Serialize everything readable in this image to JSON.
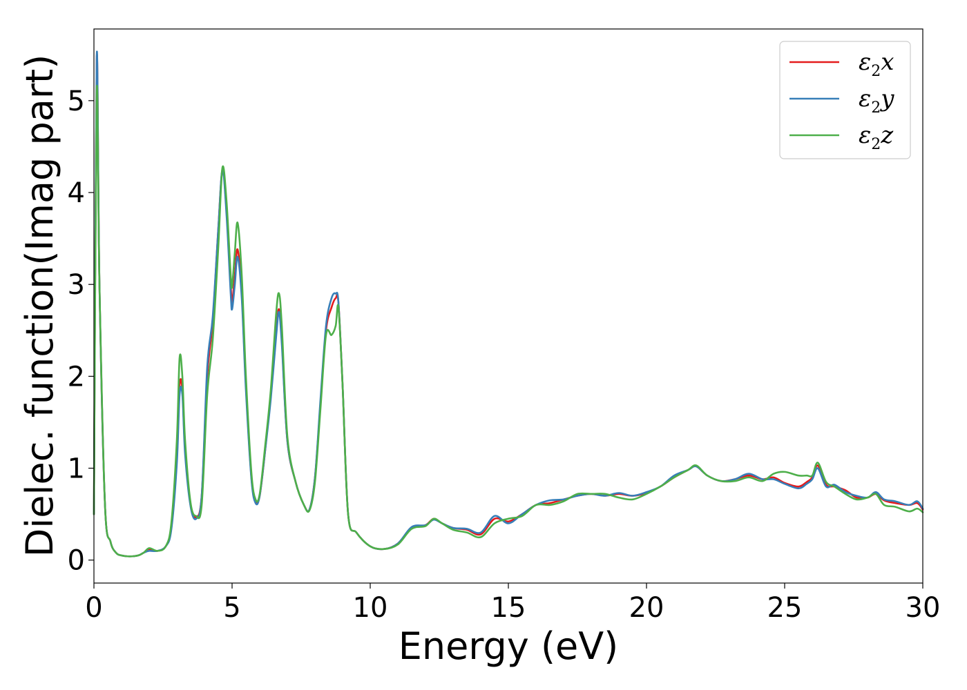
{
  "chart_data": {
    "type": "line",
    "title": "",
    "xlabel": "Energy (eV)",
    "ylabel": "Dielec. function(Imag part)",
    "xlim": [
      0,
      30
    ],
    "ylim": [
      -0.25,
      5.78
    ],
    "xticks": [
      "0",
      "5",
      "10",
      "15",
      "20",
      "25",
      "30"
    ],
    "yticks": [
      "0",
      "1",
      "2",
      "3",
      "4",
      "5"
    ],
    "grid": false,
    "legend_position": "top-right",
    "series": [
      {
        "name": "ε₂x",
        "legend_base": "ε",
        "legend_sub": "2",
        "legend_var": "x",
        "color": "#e41a1c",
        "x": [
          0.0,
          0.1,
          0.2,
          0.4,
          0.6,
          0.8,
          1.0,
          1.3,
          1.6,
          1.8,
          2.0,
          2.3,
          2.6,
          2.8,
          3.0,
          3.1,
          3.2,
          3.3,
          3.5,
          3.7,
          3.9,
          4.1,
          4.3,
          4.5,
          4.65,
          4.8,
          4.95,
          5.0,
          5.1,
          5.2,
          5.35,
          5.5,
          5.7,
          5.85,
          6.0,
          6.2,
          6.4,
          6.6,
          6.7,
          6.8,
          7.0,
          7.3,
          7.6,
          7.8,
          8.0,
          8.2,
          8.4,
          8.6,
          8.75,
          8.85,
          9.0,
          9.2,
          9.5,
          10.0,
          10.5,
          11.0,
          11.5,
          12.0,
          12.3,
          12.6,
          13.0,
          13.5,
          14.0,
          14.5,
          15.0,
          15.5,
          16.0,
          16.5,
          17.0,
          17.5,
          18.0,
          18.5,
          19.0,
          19.5,
          20.0,
          20.5,
          21.0,
          21.5,
          21.8,
          22.2,
          22.7,
          23.2,
          23.7,
          24.2,
          24.6,
          25.0,
          25.5,
          25.8,
          26.0,
          26.2,
          26.5,
          26.8,
          27.2,
          27.6,
          28.0,
          28.3,
          28.6,
          29.0,
          29.5,
          29.8,
          30.0
        ],
        "y": [
          0.5,
          5.45,
          3.0,
          0.6,
          0.2,
          0.08,
          0.05,
          0.04,
          0.05,
          0.08,
          0.12,
          0.1,
          0.15,
          0.35,
          1.1,
          1.9,
          1.85,
          1.2,
          0.6,
          0.47,
          0.7,
          2.0,
          2.6,
          3.6,
          4.25,
          3.8,
          3.0,
          2.8,
          3.1,
          3.38,
          2.9,
          1.9,
          0.9,
          0.64,
          0.7,
          1.2,
          1.8,
          2.5,
          2.73,
          2.4,
          1.3,
          0.85,
          0.6,
          0.55,
          0.9,
          1.7,
          2.5,
          2.75,
          2.85,
          2.8,
          1.9,
          0.5,
          0.3,
          0.15,
          0.12,
          0.18,
          0.35,
          0.38,
          0.45,
          0.4,
          0.35,
          0.33,
          0.28,
          0.45,
          0.42,
          0.5,
          0.6,
          0.62,
          0.66,
          0.7,
          0.72,
          0.7,
          0.72,
          0.7,
          0.73,
          0.8,
          0.9,
          0.98,
          1.02,
          0.92,
          0.86,
          0.88,
          0.92,
          0.88,
          0.9,
          0.84,
          0.8,
          0.85,
          0.9,
          1.03,
          0.82,
          0.8,
          0.76,
          0.68,
          0.68,
          0.72,
          0.65,
          0.62,
          0.6,
          0.62,
          0.55
        ]
      },
      {
        "name": "ε₂y",
        "legend_base": "ε",
        "legend_sub": "2",
        "legend_var": "y",
        "color": "#377eb8",
        "x": [
          0.0,
          0.1,
          0.2,
          0.4,
          0.6,
          0.8,
          1.0,
          1.3,
          1.6,
          1.8,
          2.0,
          2.3,
          2.6,
          2.8,
          3.0,
          3.1,
          3.2,
          3.3,
          3.5,
          3.7,
          3.9,
          4.1,
          4.3,
          4.5,
          4.65,
          4.8,
          4.95,
          5.0,
          5.1,
          5.2,
          5.35,
          5.5,
          5.7,
          5.85,
          6.0,
          6.2,
          6.4,
          6.6,
          6.7,
          6.8,
          7.0,
          7.3,
          7.6,
          7.8,
          8.0,
          8.2,
          8.4,
          8.6,
          8.75,
          8.85,
          9.0,
          9.2,
          9.5,
          10.0,
          10.5,
          11.0,
          11.5,
          12.0,
          12.3,
          12.6,
          13.0,
          13.5,
          14.0,
          14.5,
          15.0,
          15.5,
          16.0,
          16.5,
          17.0,
          17.5,
          18.0,
          18.5,
          19.0,
          19.5,
          20.0,
          20.5,
          21.0,
          21.5,
          21.8,
          22.2,
          22.7,
          23.2,
          23.7,
          24.2,
          24.6,
          25.0,
          25.5,
          25.8,
          26.0,
          26.2,
          26.5,
          26.8,
          27.2,
          27.6,
          28.0,
          28.3,
          28.6,
          29.0,
          29.5,
          29.8,
          30.0
        ],
        "y": [
          0.5,
          5.48,
          3.0,
          0.6,
          0.2,
          0.08,
          0.05,
          0.04,
          0.05,
          0.08,
          0.1,
          0.1,
          0.15,
          0.33,
          1.05,
          1.8,
          1.8,
          1.15,
          0.58,
          0.45,
          0.7,
          2.1,
          2.65,
          3.6,
          4.25,
          3.75,
          2.9,
          2.73,
          3.0,
          3.3,
          2.85,
          1.85,
          0.88,
          0.62,
          0.7,
          1.2,
          1.75,
          2.45,
          2.7,
          2.35,
          1.3,
          0.85,
          0.6,
          0.55,
          0.9,
          1.75,
          2.55,
          2.85,
          2.9,
          2.8,
          1.9,
          0.5,
          0.3,
          0.15,
          0.12,
          0.18,
          0.36,
          0.38,
          0.44,
          0.4,
          0.35,
          0.34,
          0.3,
          0.48,
          0.4,
          0.5,
          0.6,
          0.65,
          0.66,
          0.7,
          0.72,
          0.7,
          0.73,
          0.7,
          0.74,
          0.8,
          0.92,
          0.98,
          1.02,
          0.92,
          0.86,
          0.88,
          0.94,
          0.88,
          0.88,
          0.83,
          0.78,
          0.83,
          0.88,
          1.0,
          0.8,
          0.82,
          0.74,
          0.7,
          0.68,
          0.74,
          0.66,
          0.64,
          0.6,
          0.64,
          0.56
        ]
      },
      {
        "name": "ε₂z",
        "legend_base": "ε",
        "legend_sub": "2",
        "legend_var": "z",
        "color": "#4daf4a",
        "x": [
          0.0,
          0.1,
          0.2,
          0.4,
          0.6,
          0.8,
          1.0,
          1.3,
          1.6,
          1.8,
          2.0,
          2.3,
          2.6,
          2.8,
          3.0,
          3.1,
          3.2,
          3.3,
          3.5,
          3.7,
          3.9,
          4.1,
          4.3,
          4.5,
          4.65,
          4.8,
          4.95,
          5.0,
          5.1,
          5.2,
          5.35,
          5.5,
          5.7,
          5.85,
          6.0,
          6.2,
          6.4,
          6.6,
          6.7,
          6.8,
          7.0,
          7.3,
          7.6,
          7.8,
          8.0,
          8.2,
          8.4,
          8.6,
          8.75,
          8.85,
          9.0,
          9.2,
          9.5,
          10.0,
          10.5,
          11.0,
          11.5,
          12.0,
          12.3,
          12.6,
          13.0,
          13.5,
          14.0,
          14.5,
          15.0,
          15.5,
          16.0,
          16.5,
          17.0,
          17.5,
          18.0,
          18.5,
          19.0,
          19.5,
          20.0,
          20.5,
          21.0,
          21.5,
          21.8,
          22.2,
          22.7,
          23.2,
          23.7,
          24.2,
          24.6,
          25.0,
          25.5,
          25.8,
          26.0,
          26.2,
          26.5,
          26.8,
          27.2,
          27.6,
          28.0,
          28.3,
          28.6,
          29.0,
          29.5,
          29.8,
          30.0
        ],
        "y": [
          0.5,
          5.1,
          3.0,
          0.6,
          0.2,
          0.08,
          0.05,
          0.04,
          0.05,
          0.08,
          0.13,
          0.1,
          0.15,
          0.4,
          1.3,
          2.2,
          2.0,
          1.3,
          0.62,
          0.48,
          0.6,
          1.8,
          2.4,
          3.4,
          4.27,
          3.9,
          3.1,
          2.98,
          3.35,
          3.67,
          3.1,
          2.0,
          0.95,
          0.66,
          0.72,
          1.25,
          1.85,
          2.7,
          2.9,
          2.55,
          1.35,
          0.85,
          0.6,
          0.54,
          0.85,
          1.65,
          2.45,
          2.45,
          2.55,
          2.75,
          1.9,
          0.5,
          0.3,
          0.15,
          0.12,
          0.17,
          0.34,
          0.37,
          0.45,
          0.4,
          0.33,
          0.3,
          0.25,
          0.4,
          0.45,
          0.48,
          0.6,
          0.6,
          0.64,
          0.72,
          0.72,
          0.72,
          0.68,
          0.66,
          0.72,
          0.8,
          0.9,
          0.98,
          1.03,
          0.92,
          0.86,
          0.86,
          0.9,
          0.86,
          0.94,
          0.96,
          0.92,
          0.92,
          0.92,
          1.06,
          0.85,
          0.8,
          0.72,
          0.66,
          0.68,
          0.72,
          0.6,
          0.58,
          0.53,
          0.56,
          0.52
        ]
      }
    ]
  }
}
